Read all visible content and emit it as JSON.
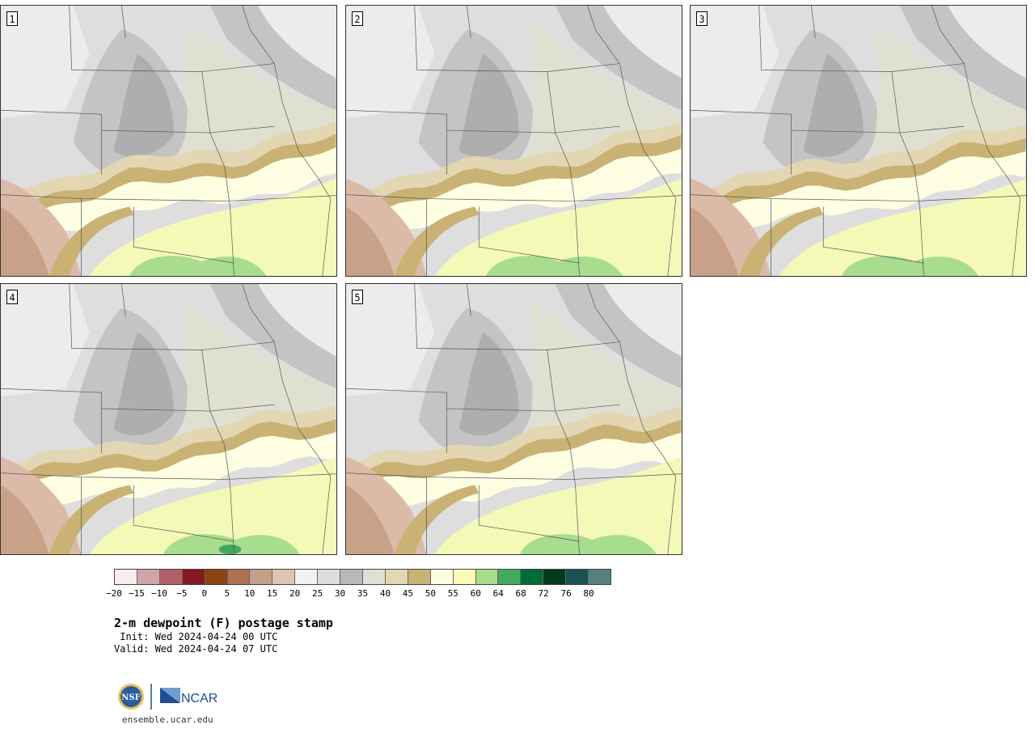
{
  "panels": [
    {
      "label": "1",
      "variant": 0
    },
    {
      "label": "2",
      "variant": 1
    },
    {
      "label": "3",
      "variant": 2
    },
    {
      "label": "4",
      "variant": 3
    },
    {
      "label": "5",
      "variant": 4
    }
  ],
  "colorbar": {
    "colors": [
      "#f7ecee",
      "#d4a3aa",
      "#b06068",
      "#861a20",
      "#8b4512",
      "#ab734f",
      "#c79f88",
      "#dfc4b4",
      "#f1f1f1",
      "#dddddd",
      "#b8b8b8",
      "#e0e0d2",
      "#e3d6b2",
      "#c9b274",
      "#fefee3",
      "#f7fbb7",
      "#a8dd8e",
      "#42a95f",
      "#006c33",
      "#003b20",
      "#1a5154",
      "#56807f"
    ],
    "ticks": [
      "−20",
      "−15",
      "−10",
      "−5",
      "0",
      "5",
      "10",
      "15",
      "20",
      "25",
      "30",
      "35",
      "40",
      "45",
      "50",
      "55",
      "60",
      "64",
      "68",
      "72",
      "76",
      "80"
    ]
  },
  "title": "2-m dewpoint (F) postage stamp",
  "init": " Init: Wed 2024-04-24 00 UTC",
  "valid": "Valid: Wed 2024-04-24 07 UTC",
  "logo": {
    "nsf": "NSF",
    "ncar": "NCAR"
  },
  "site": "ensemble.ucar.edu"
}
